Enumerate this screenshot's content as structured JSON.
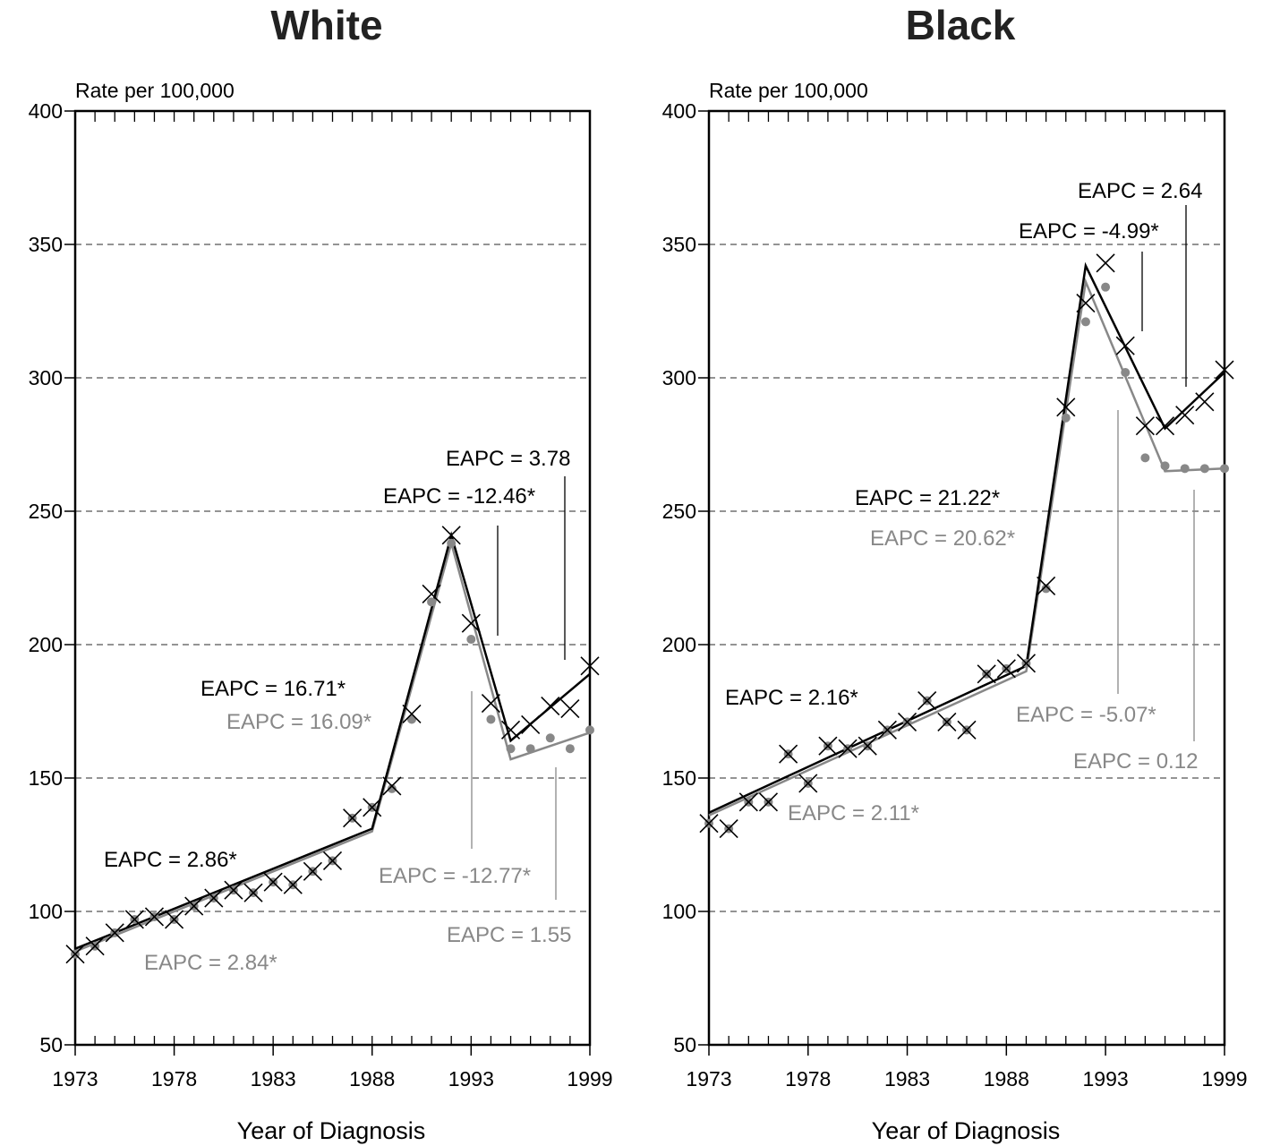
{
  "chart_data": [
    {
      "type": "line",
      "title": "White",
      "ylabel": "Rate per 100,000",
      "xlabel": "Year of Diagnosis",
      "xlim": [
        1973,
        1999
      ],
      "ylim": [
        50,
        400
      ],
      "x_ticks": [
        "1973",
        "1978",
        "1983",
        "1988",
        "1993",
        "1999"
      ],
      "y_ticks": [
        "50",
        "100",
        "150",
        "200",
        "250",
        "300",
        "350",
        "400"
      ],
      "grid": "horizontal dashed",
      "colors": {
        "observed_x": "#000000",
        "dots": "#888888",
        "fit_black": "#000000",
        "fit_gray": "#888888"
      },
      "x": [
        1973,
        1974,
        1975,
        1976,
        1977,
        1978,
        1979,
        1980,
        1981,
        1982,
        1983,
        1984,
        1985,
        1986,
        1987,
        1988,
        1989,
        1990,
        1991,
        1992,
        1993,
        1994,
        1995,
        1996,
        1997,
        1998,
        1999
      ],
      "x_marker_values": [
        84,
        87,
        92,
        97,
        98,
        97,
        102,
        105,
        108,
        107,
        111,
        110,
        115,
        119,
        135,
        139,
        147,
        174,
        219,
        241,
        208,
        178,
        168,
        170,
        177,
        176,
        192
      ],
      "dot_values": [
        84,
        87,
        92,
        97,
        98,
        97,
        102,
        105,
        108,
        107,
        111,
        110,
        115,
        119,
        135,
        139,
        146,
        172,
        216,
        238,
        202,
        172,
        161,
        161,
        165,
        161,
        168
      ],
      "fit_black": [
        {
          "x": 1973,
          "y": 86
        },
        {
          "x": 1988,
          "y": 131
        },
        {
          "x": 1992,
          "y": 241
        },
        {
          "x": 1995,
          "y": 164
        },
        {
          "x": 1999,
          "y": 189
        }
      ],
      "fit_gray": [
        {
          "x": 1973,
          "y": 85
        },
        {
          "x": 1988,
          "y": 130
        },
        {
          "x": 1992,
          "y": 238
        },
        {
          "x": 1995,
          "y": 157
        },
        {
          "x": 1999,
          "y": 167
        }
      ],
      "annotations": [
        {
          "text": "EAPC = 2.86*",
          "color": "#000000"
        },
        {
          "text": "EAPC = 2.84*",
          "color": "#888888"
        },
        {
          "text": "EAPC = 16.71*",
          "color": "#000000"
        },
        {
          "text": "EAPC = 16.09*",
          "color": "#888888"
        },
        {
          "text": "EAPC = -12.46*",
          "color": "#000000"
        },
        {
          "text": "EAPC = 3.78",
          "color": "#000000"
        },
        {
          "text": "EAPC = -12.77*",
          "color": "#888888"
        },
        {
          "text": "EAPC = 1.55",
          "color": "#888888"
        }
      ]
    },
    {
      "type": "line",
      "title": "Black",
      "ylabel": "Rate per 100,000",
      "xlabel": "Year of Diagnosis",
      "xlim": [
        1973,
        1999
      ],
      "ylim": [
        50,
        400
      ],
      "x_ticks": [
        "1973",
        "1978",
        "1983",
        "1988",
        "1993",
        "1999"
      ],
      "y_ticks": [
        "50",
        "100",
        "150",
        "200",
        "250",
        "300",
        "350",
        "400"
      ],
      "grid": "horizontal dashed",
      "colors": {
        "observed_x": "#000000",
        "dots": "#888888",
        "fit_black": "#000000",
        "fit_gray": "#888888"
      },
      "x": [
        1973,
        1974,
        1975,
        1976,
        1977,
        1978,
        1979,
        1980,
        1981,
        1982,
        1983,
        1984,
        1985,
        1986,
        1987,
        1988,
        1989,
        1990,
        1991,
        1992,
        1993,
        1994,
        1995,
        1996,
        1997,
        1998,
        1999
      ],
      "x_marker_values": [
        133,
        131,
        141,
        141,
        159,
        148,
        162,
        161,
        162,
        168,
        171,
        179,
        171,
        168,
        189,
        191,
        193,
        222,
        289,
        328,
        343,
        312,
        282,
        282,
        286,
        291,
        303
      ],
      "dot_values": [
        133,
        131,
        141,
        141,
        159,
        148,
        162,
        161,
        162,
        168,
        171,
        179,
        171,
        168,
        189,
        191,
        193,
        221,
        285,
        321,
        334,
        302,
        270,
        267,
        266,
        266,
        266
      ],
      "fit_black": [
        {
          "x": 1973,
          "y": 137
        },
        {
          "x": 1989,
          "y": 192
        },
        {
          "x": 1992,
          "y": 342
        },
        {
          "x": 1996,
          "y": 281
        },
        {
          "x": 1999,
          "y": 302
        }
      ],
      "fit_gray": [
        {
          "x": 1973,
          "y": 136
        },
        {
          "x": 1989,
          "y": 190
        },
        {
          "x": 1992,
          "y": 336
        },
        {
          "x": 1996,
          "y": 265
        },
        {
          "x": 1999,
          "y": 266
        }
      ],
      "annotations": [
        {
          "text": "EAPC = 2.16*",
          "color": "#000000"
        },
        {
          "text": "EAPC = 2.11*",
          "color": "#888888"
        },
        {
          "text": "EAPC = 21.22*",
          "color": "#000000"
        },
        {
          "text": "EAPC = 20.62*",
          "color": "#888888"
        },
        {
          "text": "EAPC = -4.99*",
          "color": "#000000"
        },
        {
          "text": "EAPC = 2.64",
          "color": "#000000"
        },
        {
          "text": "EAPC = -5.07*",
          "color": "#888888"
        },
        {
          "text": "EAPC = 0.12",
          "color": "#888888"
        }
      ]
    }
  ]
}
